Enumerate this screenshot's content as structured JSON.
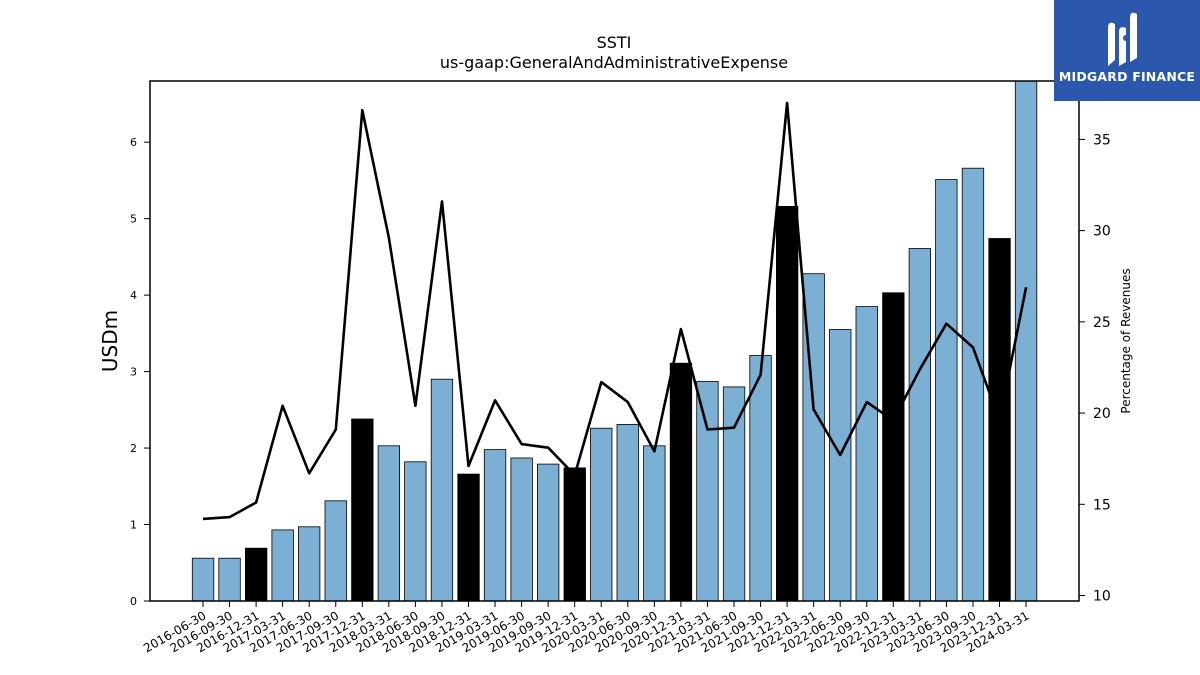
{
  "chart_data": {
    "type": "bar",
    "title": "SSTI",
    "subtitle": "us-gaap:GeneralAndAdministrativeExpense",
    "ylabel": "USDm",
    "y2label": "Percentage of Revenues",
    "ylim": [
      0,
      6.8
    ],
    "y2lim": [
      9.7,
      38.2
    ],
    "yticks": [
      0,
      1,
      2,
      3,
      4,
      5,
      6
    ],
    "y2ticks": [
      10,
      15,
      20,
      25,
      30,
      35
    ],
    "categories": [
      "2016-06-30",
      "2016-09-30",
      "2016-12-31",
      "2017-03-31",
      "2017-06-30",
      "2017-09-30",
      "2017-12-31",
      "2018-03-31",
      "2018-06-30",
      "2018-09-30",
      "2018-12-31",
      "2019-03-31",
      "2019-06-30",
      "2019-09-30",
      "2019-12-31",
      "2020-03-31",
      "2020-06-30",
      "2020-09-30",
      "2020-12-31",
      "2021-03-31",
      "2021-06-30",
      "2021-09-30",
      "2021-12-31",
      "2022-03-31",
      "2022-06-30",
      "2022-09-30",
      "2022-12-31",
      "2023-03-31",
      "2023-06-30",
      "2023-09-30",
      "2023-12-31",
      "2024-03-31"
    ],
    "series": [
      {
        "type": "bar",
        "axis": "left",
        "values": [
          0.56,
          0.56,
          0.69,
          0.93,
          0.97,
          1.31,
          2.38,
          2.03,
          1.82,
          2.9,
          1.66,
          1.98,
          1.87,
          1.79,
          1.74,
          2.26,
          2.31,
          2.03,
          3.11,
          2.87,
          2.8,
          3.21,
          5.16,
          4.28,
          3.55,
          3.85,
          4.03,
          4.61,
          5.51,
          5.66,
          4.74,
          6.8
        ],
        "highlight": [
          false,
          false,
          true,
          false,
          false,
          false,
          true,
          false,
          false,
          false,
          true,
          false,
          false,
          false,
          true,
          false,
          false,
          false,
          true,
          false,
          false,
          false,
          true,
          false,
          false,
          false,
          true,
          false,
          false,
          false,
          true,
          false
        ]
      },
      {
        "type": "line",
        "axis": "right",
        "values": [
          14.2,
          14.3,
          15.1,
          20.4,
          16.7,
          19.1,
          36.6,
          29.6,
          20.4,
          31.6,
          17.1,
          20.7,
          18.3,
          18.1,
          16.6,
          21.7,
          20.6,
          17.9,
          24.6,
          19.1,
          19.2,
          22.1,
          37.0,
          20.2,
          17.7,
          20.6,
          19.6,
          22.4,
          24.9,
          23.6,
          19.6,
          26.9
        ]
      }
    ],
    "colors": {
      "bar": "#7bafd4",
      "bar_highlight": "#000000",
      "line": "#000000"
    },
    "grid": false
  },
  "logo": {
    "text": "MIDGARD FINANCE",
    "bg": "#2b57ad"
  }
}
